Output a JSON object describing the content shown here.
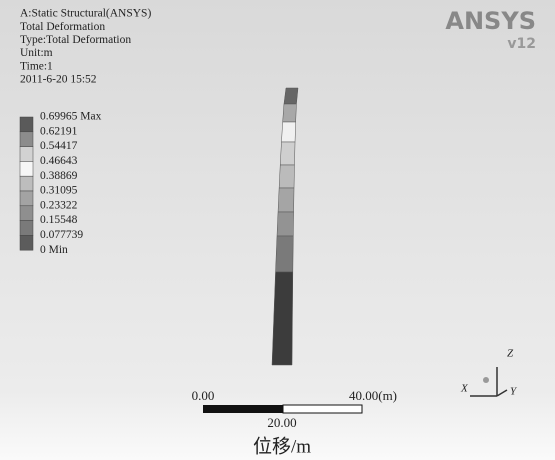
{
  "header": {
    "lines": [
      "A:Static Structural(ANSYS)",
      "Total Deformation",
      "Type:Total Deformation",
      "Unit:m",
      "Time:1",
      "2011-6-20 15:52"
    ]
  },
  "logo": {
    "brand": "ANSYS",
    "version": "v12"
  },
  "legend": {
    "labels": [
      "0.69965 Max",
      "0.62191",
      "0.54417",
      "0.46643",
      "0.38869",
      "0.31095",
      "0.23322",
      "0.15548",
      "0.077739",
      "0 Min"
    ],
    "colors": [
      "#5a5a5a",
      "#8c8c8c",
      "#d2d2d2",
      "#f6f6f6",
      "#bdbdbd",
      "#a3a3a3",
      "#8f8f8f",
      "#7a7a7a",
      "#5c5c5c"
    ]
  },
  "scale_bar": {
    "start": "0.00",
    "mid": "20.00",
    "end": "40.00(m)"
  },
  "triad": {
    "x": "X",
    "y": "Y",
    "z": "Z"
  },
  "caption": "位移/m"
}
